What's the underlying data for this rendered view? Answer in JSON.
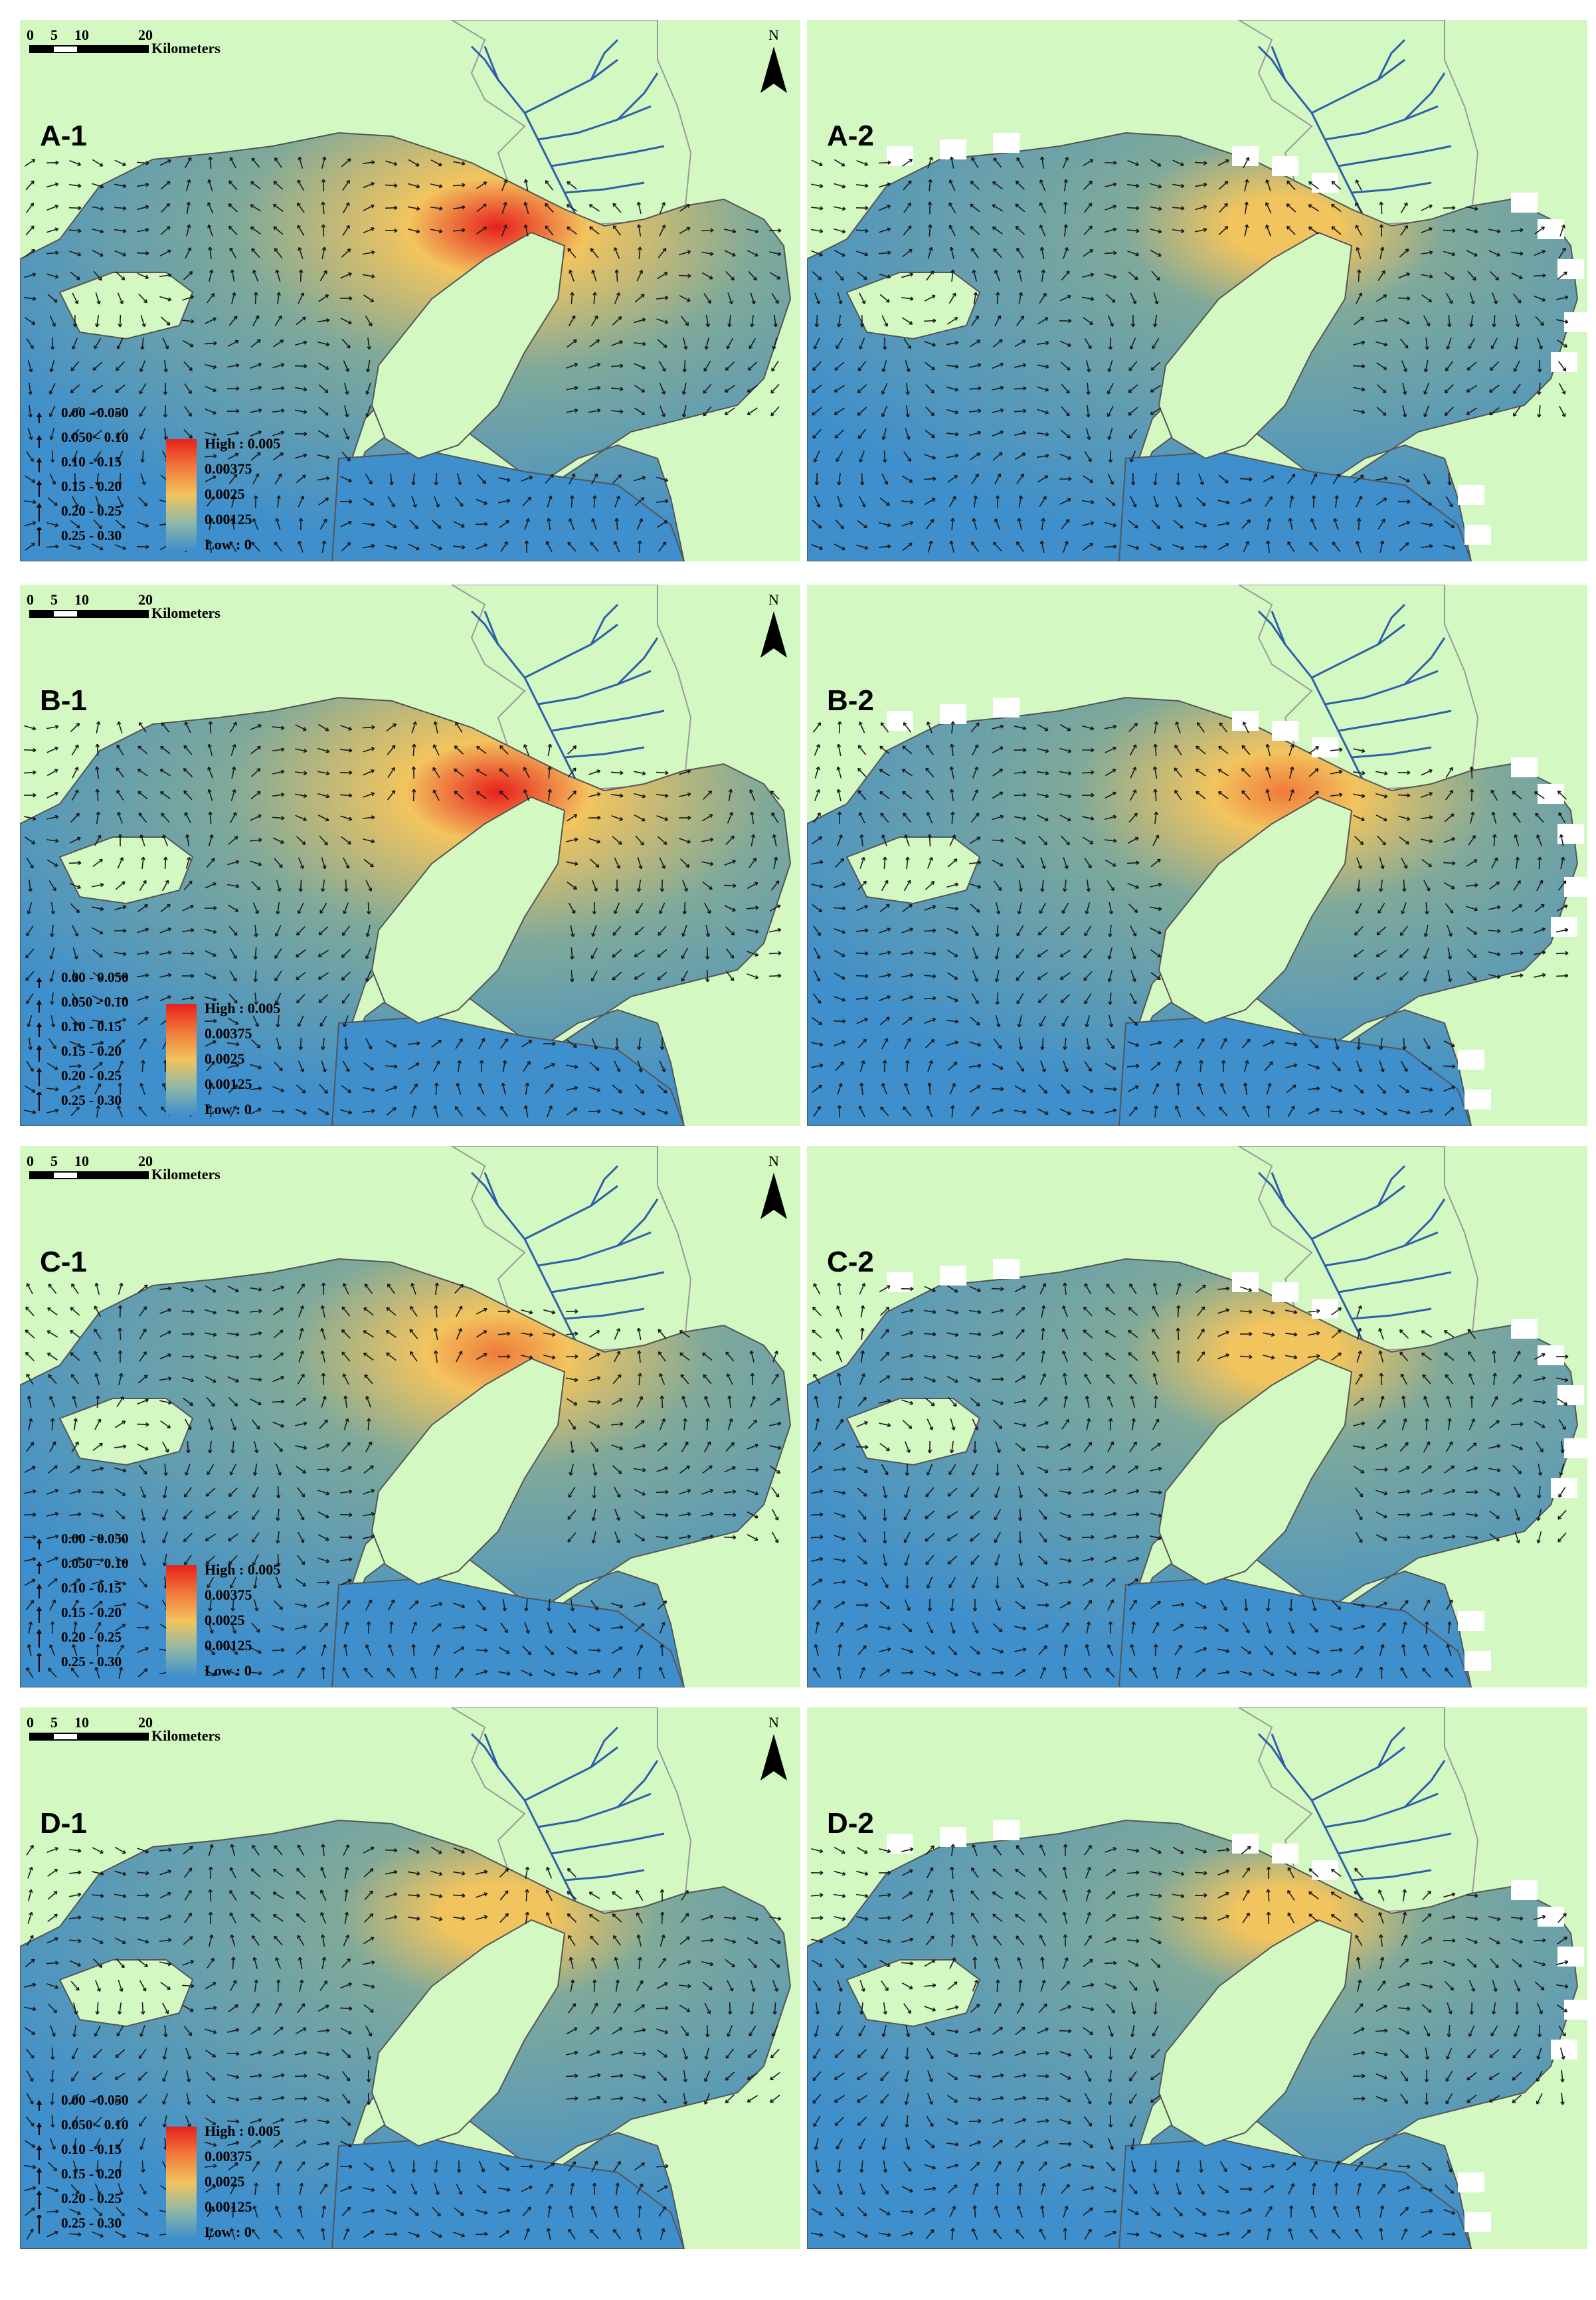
{
  "scale_bar": {
    "ticks": [
      "0",
      "5",
      "10",
      "20"
    ],
    "unit": "Kilometers"
  },
  "north_label": "N",
  "velocity_legend": [
    "0.00 - 0.050",
    "0.050 - 0.10",
    "0.10 - 0.15",
    "0.15 - 0.20",
    "0.20 - 0.25",
    "0.25 - 0.30"
  ],
  "concentration_legend": {
    "high": "High : 0.005",
    "mid_high": "0.00375",
    "mid": "0.0025",
    "mid_low": "0.00125",
    "low": "Low : 0",
    "colors": [
      "#e8201c",
      "#f07a3a",
      "#f2c45e",
      "#8fb8a6",
      "#3f8fcc"
    ]
  },
  "colors": {
    "land": "#d3f8c2",
    "river": "#2f5fa8",
    "shoreline": "#555555",
    "low_water": "#3f8fcc",
    "mid_water": "#7fa99a",
    "high_water": "#e8201c"
  },
  "panels": [
    {
      "label": "A-1",
      "intensity": 0.95,
      "gridded": false
    },
    {
      "label": "A-2",
      "intensity": 0.45,
      "gridded": true
    },
    {
      "label": "B-1",
      "intensity": 1.0,
      "gridded": false
    },
    {
      "label": "B-2",
      "intensity": 0.7,
      "gridded": true
    },
    {
      "label": "C-1",
      "intensity": 0.7,
      "gridded": false
    },
    {
      "label": "C-2",
      "intensity": 0.45,
      "gridded": true
    },
    {
      "label": "D-1",
      "intensity": 0.45,
      "gridded": false
    },
    {
      "label": "D-2",
      "intensity": 0.35,
      "gridded": true
    }
  ]
}
